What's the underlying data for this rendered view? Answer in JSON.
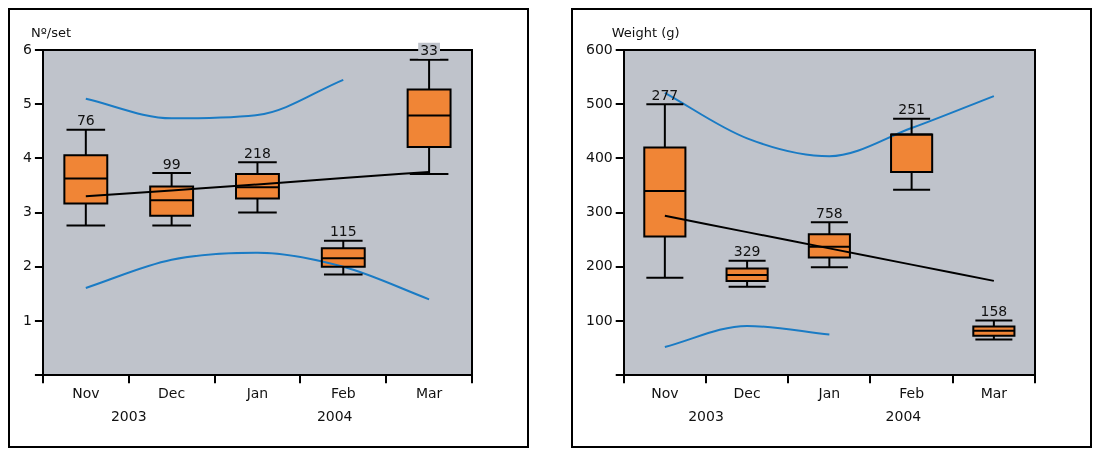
{
  "chart_data": [
    {
      "type": "box",
      "ylabel": "Nº/set",
      "categories": [
        "Nov",
        "Dec",
        "Jan",
        "Feb",
        "Mar"
      ],
      "ylim": [
        0,
        6
      ],
      "yticks": [
        {
          "value": 0,
          "label": null
        },
        1,
        2,
        3,
        4,
        5,
        6
      ],
      "color": "#f08536",
      "grid": false,
      "boxes": [
        {
          "low": 2.76,
          "q1": 3.17,
          "median": 3.63,
          "q3": 4.06,
          "high": 4.53
        },
        {
          "low": 2.76,
          "q1": 2.94,
          "median": 3.23,
          "q3": 3.48,
          "high": 3.73
        },
        {
          "low": 3.0,
          "q1": 3.26,
          "median": 3.47,
          "q3": 3.71,
          "high": 3.93
        },
        {
          "low": 1.86,
          "q1": 2.0,
          "median": 2.16,
          "q3": 2.34,
          "high": 2.48
        },
        {
          "low": 3.71,
          "q1": 4.21,
          "median": 4.79,
          "q3": 5.27,
          "high": 5.82
        }
      ],
      "series": [
        {
          "type": "line",
          "color": "#000000",
          "values": [
            3.3,
            3.41,
            3.52,
            3.64,
            3.75
          ]
        },
        {
          "type": "line",
          "color": "#1a7bc4",
          "values": [
            5.1,
            4.74,
            4.8,
            5.45,
            null
          ]
        },
        {
          "type": "line",
          "color": "#1a7bc4",
          "values": [
            1.61,
            2.13,
            2.26,
            2.0,
            1.4
          ]
        }
      ],
      "annotations": [
        {
          "text": "76",
          "x": "Nov",
          "y": 4.53
        },
        {
          "text": "99",
          "x": "Dec",
          "y": 3.73
        },
        {
          "text": "218",
          "x": "Jan",
          "y": 3.93
        },
        {
          "text": "115",
          "x": "Feb",
          "y": 2.48
        },
        {
          "text": "33",
          "x": "Mar",
          "y": 5.82
        },
        "2003",
        "2004"
      ]
    },
    {
      "type": "box",
      "ylabel": "Weight (g)",
      "categories": [
        "Nov",
        "Dec",
        "Jan",
        "Feb",
        "Mar"
      ],
      "ylim": [
        0,
        600
      ],
      "yticks": [
        {
          "value": 0,
          "label": null
        },
        100,
        200,
        300,
        400,
        500,
        600
      ],
      "color": "#f08536",
      "grid": false,
      "boxes": [
        {
          "low": 180,
          "q1": 256,
          "median": 340,
          "q3": 420,
          "high": 500
        },
        {
          "low": 163,
          "q1": 174,
          "median": 185,
          "q3": 197,
          "high": 211
        },
        {
          "low": 199,
          "q1": 217,
          "median": 237,
          "q3": 260,
          "high": 282
        },
        {
          "low": 342,
          "q1": 375,
          "median": 444,
          "q3": 444,
          "high": 473
        },
        {
          "low": 66,
          "q1": 73,
          "median": 82,
          "q3": 90,
          "high": 101
        }
      ],
      "series": [
        {
          "type": "line",
          "color": "#000000",
          "values": [
            294,
            264,
            234,
            204,
            174
          ]
        },
        {
          "type": "line",
          "color": "#1a7bc4",
          "values": [
            521,
            437,
            404,
            456,
            515
          ]
        },
        {
          "type": "line",
          "color": "#1a7bc4",
          "values": [
            52,
            91,
            75,
            null,
            null
          ]
        }
      ],
      "annotations": [
        {
          "text": "277",
          "x": "Nov",
          "y": 500
        },
        {
          "text": "329",
          "x": "Dec",
          "y": 211
        },
        {
          "text": "758",
          "x": "Jan",
          "y": 282
        },
        {
          "text": "251",
          "x": "Feb",
          "y": 473
        },
        {
          "text": "158",
          "x": "Mar",
          "y": 101
        },
        "2003",
        "2004"
      ]
    }
  ]
}
